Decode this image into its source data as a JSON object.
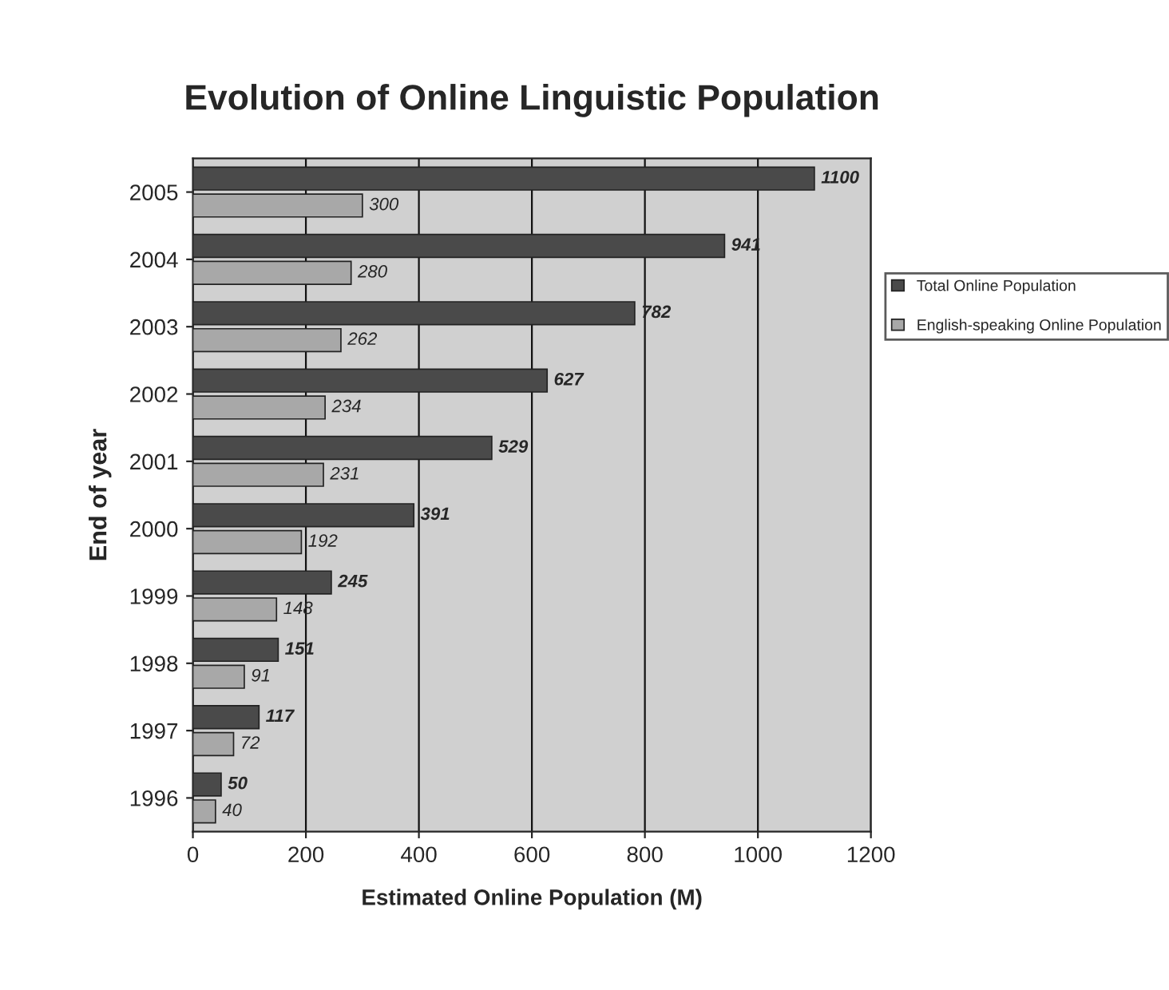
{
  "chart_data": {
    "type": "bar",
    "orientation": "horizontal",
    "title": "Evolution of Online Linguistic Population",
    "xlabel": "Estimated Online Population (M)",
    "ylabel": "End of year",
    "categories": [
      "2005",
      "2004",
      "2003",
      "2002",
      "2001",
      "2000",
      "1999",
      "1998",
      "1997",
      "1996"
    ],
    "series": [
      {
        "name": "Total Online Population",
        "color": "#4a4a4a",
        "values": [
          1100,
          941,
          782,
          627,
          529,
          391,
          245,
          151,
          117,
          50
        ]
      },
      {
        "name": "English-speaking Online Population",
        "color": "#a8a8a8",
        "values": [
          300,
          280,
          262,
          234,
          231,
          192,
          148,
          91,
          72,
          40
        ]
      }
    ],
    "xlim": [
      0,
      1200
    ],
    "xticks": [
      0,
      200,
      400,
      600,
      800,
      1000,
      1200
    ],
    "grid": "x",
    "legend": "right",
    "data_labels": true
  }
}
